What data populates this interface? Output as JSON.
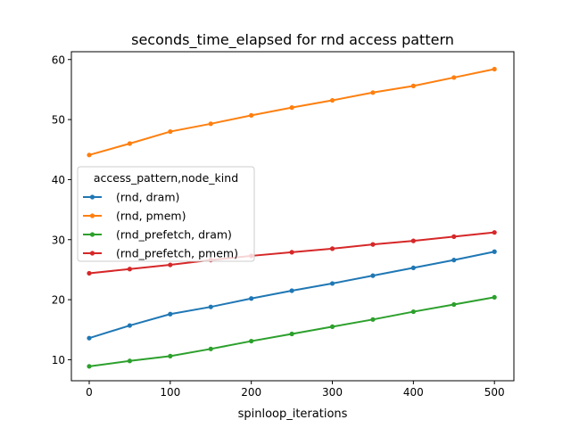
{
  "chart_data": {
    "type": "line",
    "title": "seconds_time_elapsed for rnd access pattern",
    "xlabel": "spinloop_iterations",
    "ylabel": "",
    "x": [
      0,
      50,
      100,
      150,
      200,
      250,
      300,
      350,
      400,
      450,
      500
    ],
    "xlim": [
      -22,
      524
    ],
    "ylim": [
      6.5,
      61.3
    ],
    "xticks": [
      0,
      100,
      200,
      300,
      400,
      500
    ],
    "yticks": [
      10,
      20,
      30,
      40,
      50,
      60
    ],
    "grid": false,
    "legend": {
      "title": "access_pattern,node_kind",
      "placement": "center-left"
    },
    "series": [
      {
        "name": "(rnd, dram)",
        "color": "#1f77b4",
        "values": [
          13.6,
          15.7,
          17.6,
          18.8,
          20.2,
          21.5,
          22.7,
          24.0,
          25.3,
          26.6,
          28.0
        ]
      },
      {
        "name": "(rnd, pmem)",
        "color": "#ff7f0e",
        "values": [
          44.1,
          46.0,
          48.0,
          49.3,
          50.7,
          52.0,
          53.2,
          54.5,
          55.6,
          57.0,
          58.4
        ]
      },
      {
        "name": "(rnd_prefetch, dram)",
        "color": "#2ca02c",
        "values": [
          8.9,
          9.8,
          10.6,
          11.8,
          13.1,
          14.3,
          15.5,
          16.7,
          18.0,
          19.2,
          20.4
        ]
      },
      {
        "name": "(rnd_prefetch, pmem)",
        "color": "#d62728",
        "values": [
          24.4,
          25.1,
          25.8,
          26.6,
          27.3,
          27.9,
          28.5,
          29.2,
          29.8,
          30.5,
          31.2
        ]
      }
    ]
  }
}
